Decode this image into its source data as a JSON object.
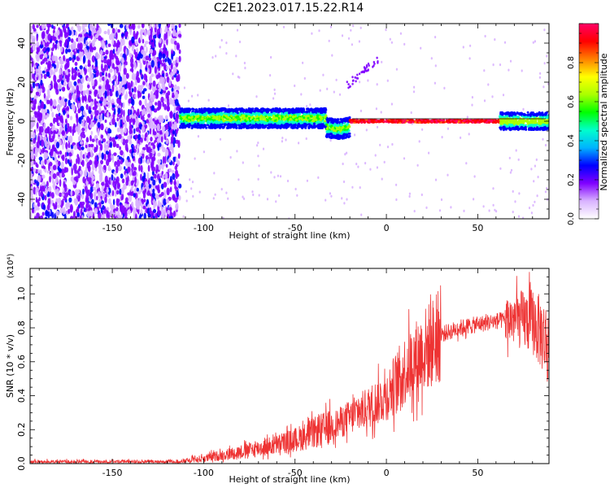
{
  "title": "C2E1.2023.017.15.22.R14",
  "chart_data": [
    {
      "type": "heatmap",
      "title": "",
      "xlabel": "Height of straight line (km)",
      "ylabel": "Frequency (Hz)",
      "xlim": [
        -195,
        89
      ],
      "ylim": [
        -50,
        50
      ],
      "xticks": [
        "-150",
        "-100",
        "-50",
        "0",
        "50"
      ],
      "yticks": [
        "-40",
        "-20",
        "0",
        "20",
        "40"
      ],
      "colorbar": {
        "label": "Normalized spectral amplitude",
        "range": [
          0,
          1
        ],
        "ticks": [
          "0.0",
          "0.2",
          "0.4",
          "0.6",
          "0.8"
        ],
        "colormap": [
          "#ffffff",
          "#d9b3ff",
          "#8000ff",
          "#0000ff",
          "#00b3ff",
          "#00ffcc",
          "#00ff00",
          "#aaff00",
          "#ffff00",
          "#ff8000",
          "#ff0000",
          "#ff0066"
        ]
      },
      "regions": [
        {
          "x_range": [
            -195,
            -113
          ],
          "frequency_range": [
            -50,
            50
          ],
          "amplitude": "0.1-0.25",
          "pattern": "broadband noise"
        },
        {
          "x_range": [
            -113,
            -75
          ],
          "frequency_range": [
            -4,
            6
          ],
          "amplitude": "0.3-0.5",
          "pattern": "narrow band"
        },
        {
          "x_range": [
            -75,
            -30
          ],
          "frequency_range": [
            -6,
            7
          ],
          "amplitude": "0.3-0.5",
          "pattern": "narrow band"
        },
        {
          "x_range": [
            -30,
            -20
          ],
          "frequency_range": [
            -6,
            -1
          ],
          "amplitude": "0.3-0.6",
          "pattern": "dip"
        },
        {
          "x_range": [
            -20,
            65
          ],
          "frequency_range": [
            -1,
            1
          ],
          "amplitude": "0.8-1.0",
          "pattern": "single tone at 0 Hz"
        },
        {
          "x_range": [
            65,
            89
          ],
          "frequency_range": [
            -4,
            5
          ],
          "amplitude": "0.3-0.6",
          "pattern": "narrow band"
        }
      ]
    },
    {
      "type": "line",
      "title": "",
      "xlabel": "Height of straight line (km)",
      "ylabel": "SNR (10 * v/v)",
      "y_multiplier": "(x10⁴)",
      "xlim": [
        -195,
        89
      ],
      "ylim": [
        0.0,
        1.15
      ],
      "xticks": [
        "-150",
        "-100",
        "-50",
        "0",
        "50"
      ],
      "yticks": [
        "0.0",
        "0.2",
        "0.4",
        "0.6",
        "0.8",
        "1.0"
      ],
      "color": "#ee3333",
      "series": [
        {
          "x": [
            -195,
            -180,
            -160,
            -140,
            -120,
            -110,
            -100,
            -90,
            -80,
            -70,
            -60,
            -50,
            -40,
            -30,
            -20,
            -10,
            0,
            10,
            20,
            30,
            40,
            50,
            60,
            70,
            80,
            89
          ],
          "values": [
            0.01,
            0.01,
            0.01,
            0.01,
            0.01,
            0.015,
            0.03,
            0.05,
            0.07,
            0.09,
            0.11,
            0.14,
            0.18,
            0.22,
            0.27,
            0.33,
            0.4,
            0.55,
            0.66,
            0.76,
            0.8,
            0.82,
            0.84,
            0.85,
            0.84,
            0.7
          ]
        }
      ]
    }
  ]
}
